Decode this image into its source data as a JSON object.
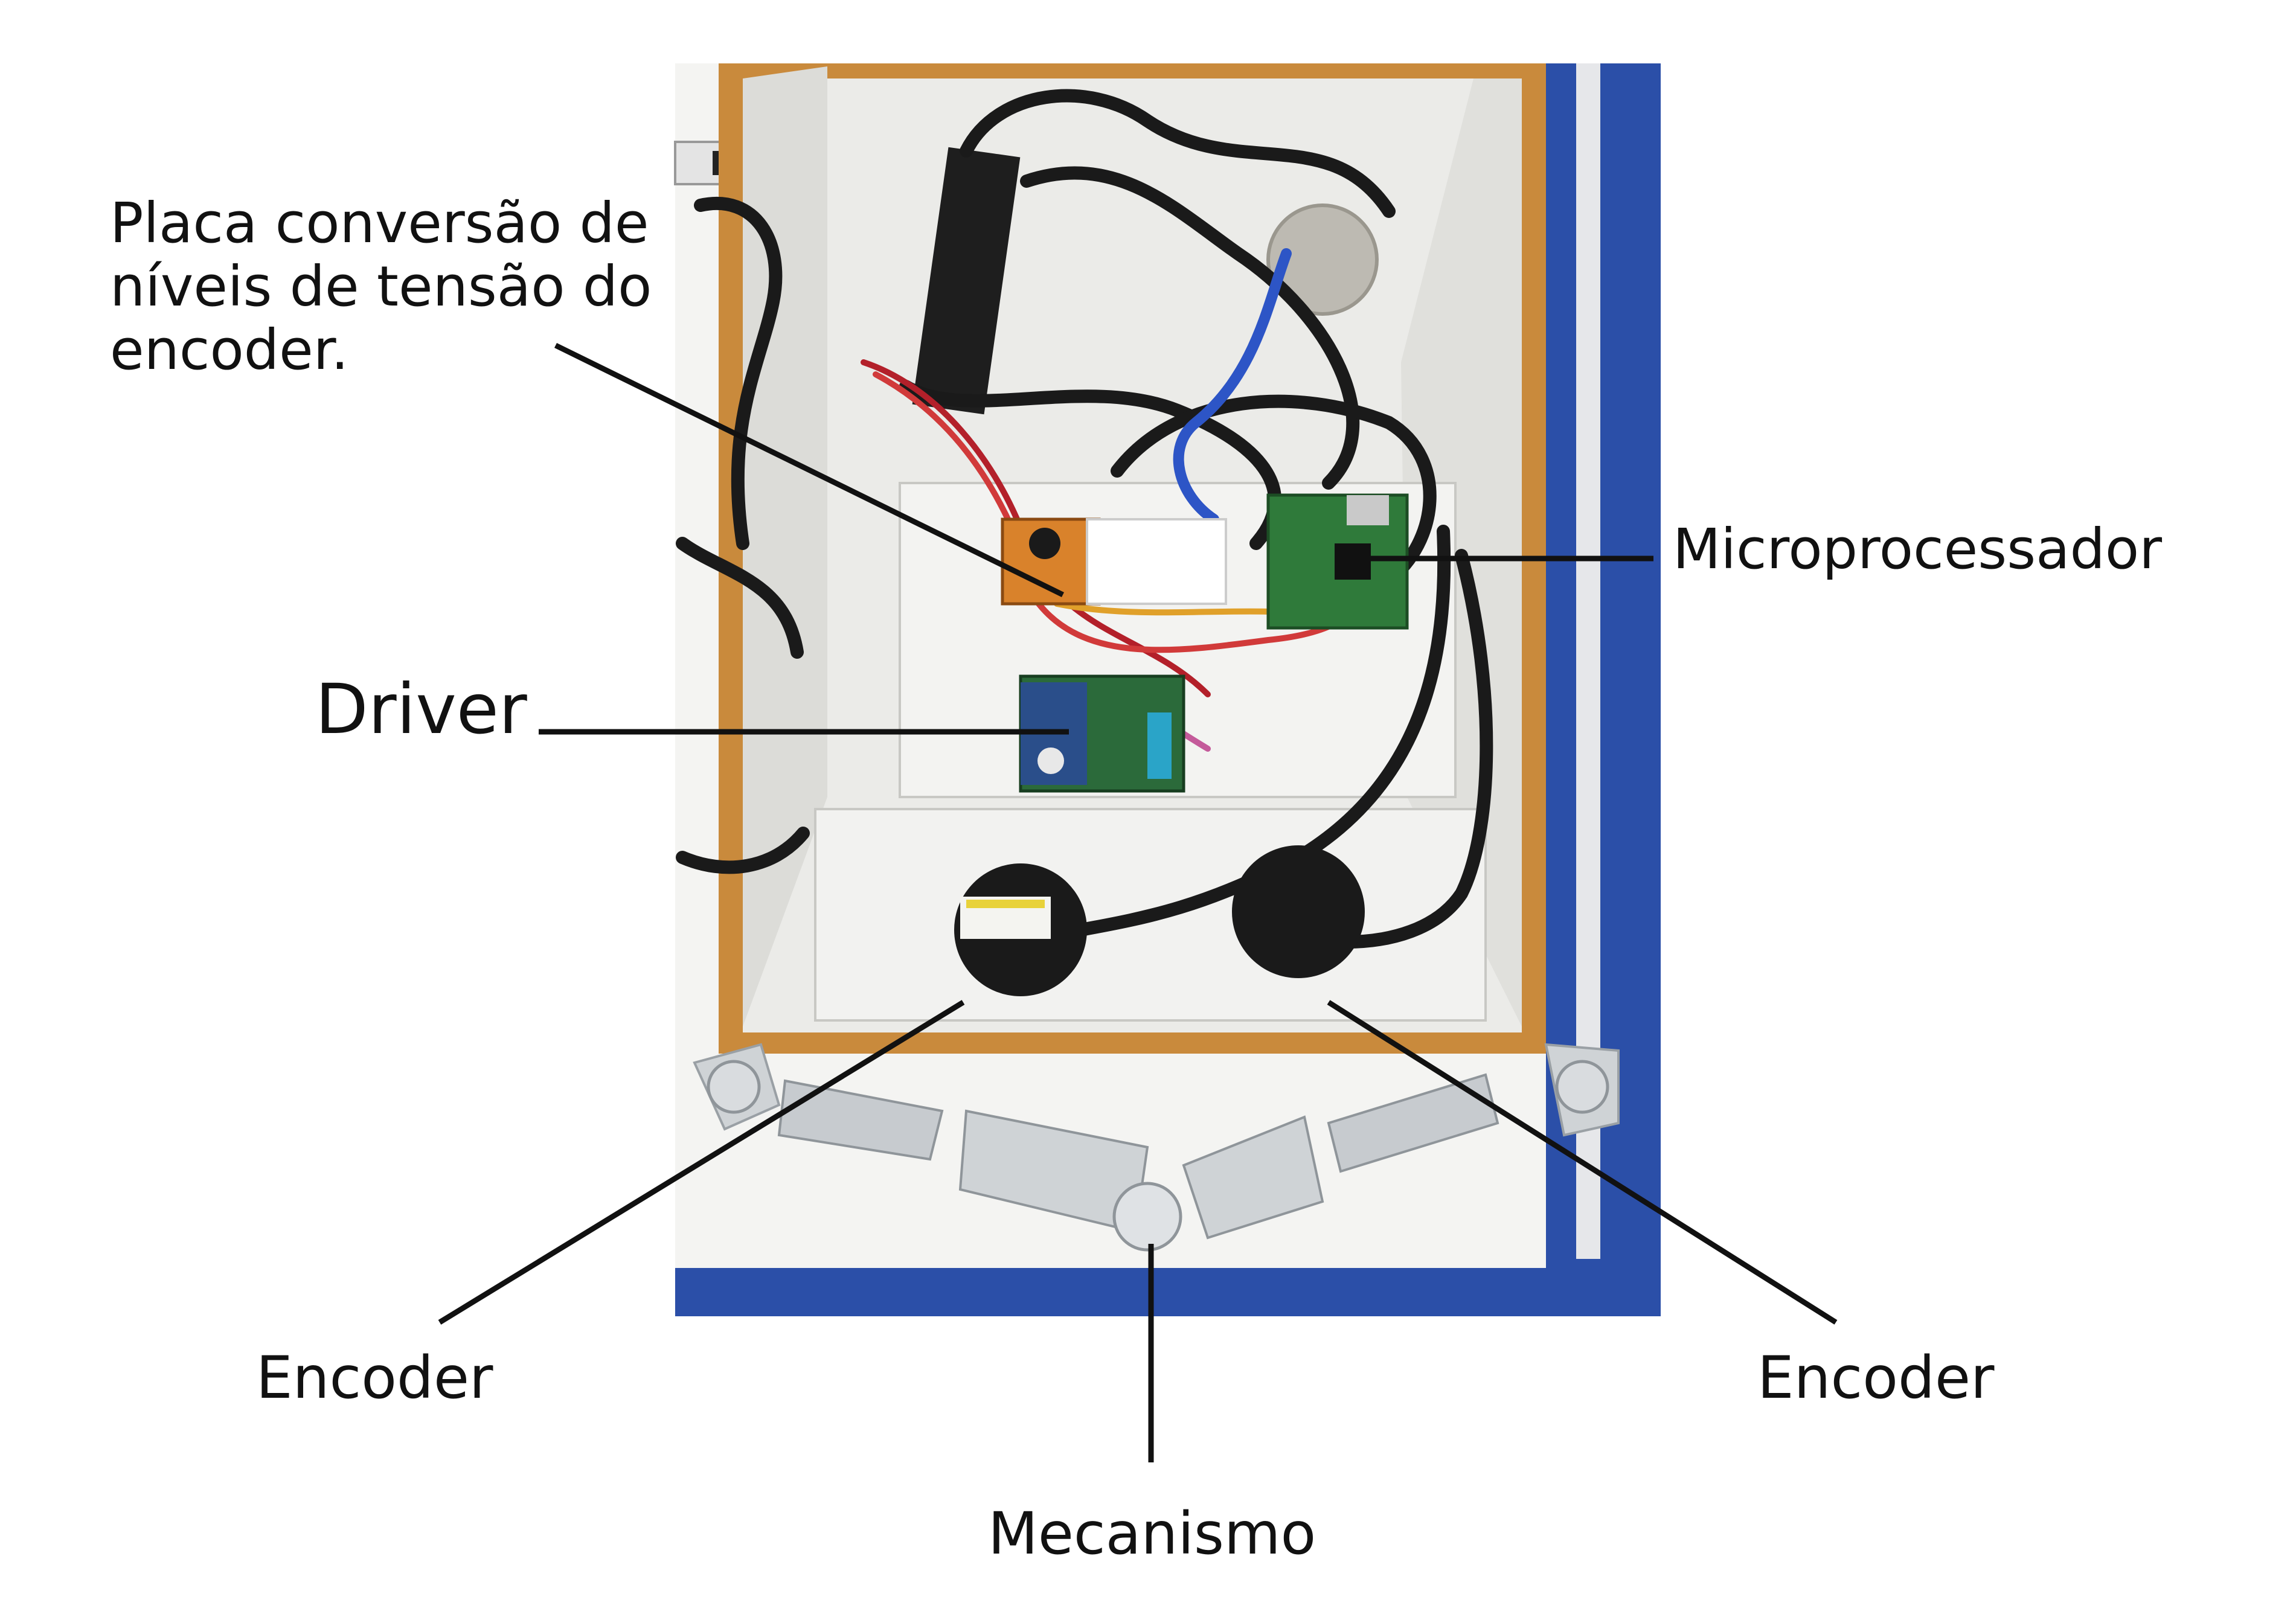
{
  "labels": {
    "placa": [
      "Placa conversão de",
      "níveis de tensão do",
      "encoder."
    ],
    "microprocessador": "Microprocessador",
    "driver": "Driver",
    "encoder_left": "Encoder",
    "encoder_right": "Encoder",
    "mecanismo": "Mecanismo"
  },
  "colors": {
    "table_blue": "#2b4fa8",
    "wood_frame": "#c98a3c",
    "panel": "#e9e9e6",
    "cable": "#1a1a1a",
    "pcb_green": "#2f7a3a",
    "leader_line": "#111111"
  }
}
